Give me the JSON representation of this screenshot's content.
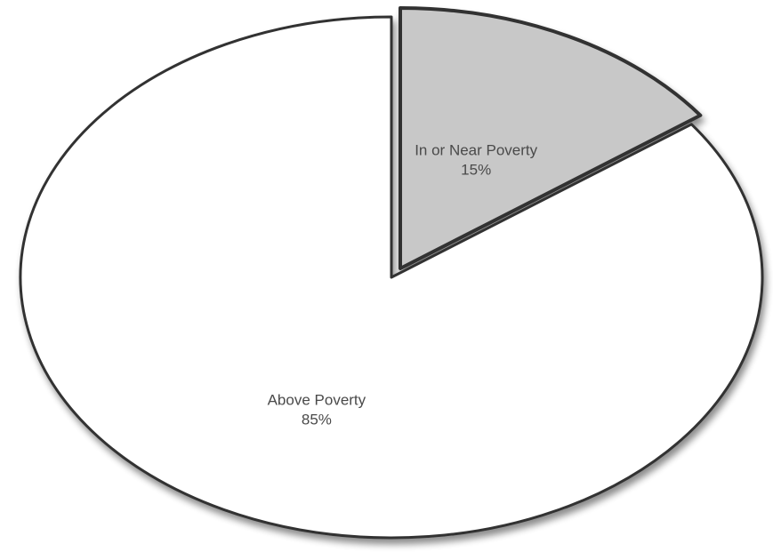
{
  "chart_data": {
    "type": "pie",
    "title": "",
    "slices": [
      {
        "label": "In or Near Poverty",
        "value": 15,
        "value_label": "15%",
        "color": "#c8c8c8"
      },
      {
        "label": "Above Poverty",
        "value": 85,
        "value_label": "85%",
        "color": "#ffffff"
      }
    ],
    "exploded_slice": "In or Near Poverty",
    "legend": "none",
    "outline_color": "#333333"
  }
}
